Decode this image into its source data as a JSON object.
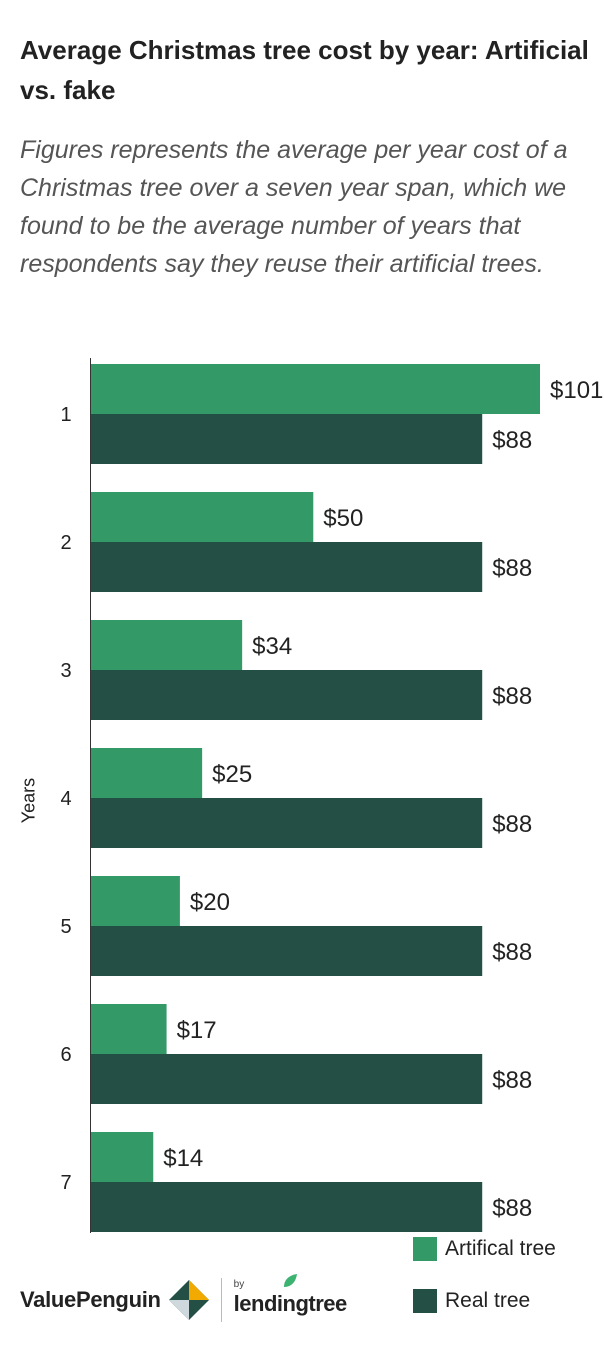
{
  "chart_data": {
    "type": "bar",
    "orientation": "horizontal",
    "title": "Average Christmas tree cost by year: Artificial vs. fake",
    "subtitle": "Figures represents the average per year cost of a Christmas tree over a seven year span, which we found to be the average number of years that respondents say they reuse their artificial trees.",
    "ylabel": "Years",
    "xlabel": "",
    "categories": [
      "1",
      "2",
      "3",
      "4",
      "5",
      "6",
      "7"
    ],
    "series": [
      {
        "name": "Artifical tree",
        "color": "#339966",
        "values": [
          101,
          50,
          34,
          25,
          20,
          17,
          14
        ],
        "labels": [
          "$101",
          "$50",
          "$34",
          "$25",
          "$20",
          "$17",
          "$14"
        ]
      },
      {
        "name": "Real tree",
        "color": "#234f45",
        "values": [
          88,
          88,
          88,
          88,
          88,
          88,
          88
        ],
        "labels": [
          "$88",
          "$88",
          "$88",
          "$88",
          "$88",
          "$88",
          "$88"
        ]
      }
    ],
    "xlim": [
      0,
      101
    ],
    "grid": false,
    "legend_position": "bottom-right"
  },
  "branding": {
    "valuepenguin": "ValuePenguin",
    "by": "by",
    "lendingtree": "lendingtree"
  }
}
